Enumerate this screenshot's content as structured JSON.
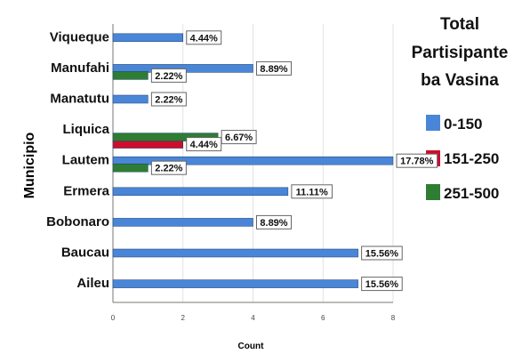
{
  "chart_data": {
    "type": "bar",
    "orientation": "horizontal",
    "title": "",
    "xlabel": "Count",
    "ylabel": "Municipio",
    "xlim": [
      0,
      8
    ],
    "x_ticks": [
      "0",
      "2",
      "4",
      "6",
      "8"
    ],
    "grid": true,
    "legend_position": "right",
    "legend_title": [
      "Total",
      "Partisipante",
      "ba Vasina"
    ],
    "categories": [
      "Viqueque",
      "Manufahi",
      "Manatutu",
      "Liquica",
      "Lautem",
      "Ermera",
      "Bobonaro",
      "Baucau",
      "Aileu"
    ],
    "series": [
      {
        "name": "0-150",
        "color": "#4a86d8",
        "values": [
          2,
          4,
          1,
          null,
          8,
          5,
          4,
          7,
          7
        ],
        "labels": [
          "4.44%",
          "8.89%",
          "2.22%",
          "",
          "17.78%",
          "11.11%",
          "8.89%",
          "15.56%",
          "15.56%"
        ]
      },
      {
        "name": "151-250",
        "color": "#cc0e2e",
        "values": [
          null,
          null,
          null,
          2,
          null,
          null,
          null,
          null,
          null
        ],
        "labels": [
          "",
          "",
          "",
          "4.44%",
          "",
          "",
          "",
          "",
          ""
        ]
      },
      {
        "name": "251-500",
        "color": "#2e7d32",
        "values": [
          null,
          1,
          null,
          3,
          1,
          null,
          null,
          null,
          null
        ],
        "labels": [
          "",
          "2.22%",
          "",
          "6.67%",
          "2.22%",
          "",
          "",
          "",
          ""
        ]
      }
    ]
  }
}
